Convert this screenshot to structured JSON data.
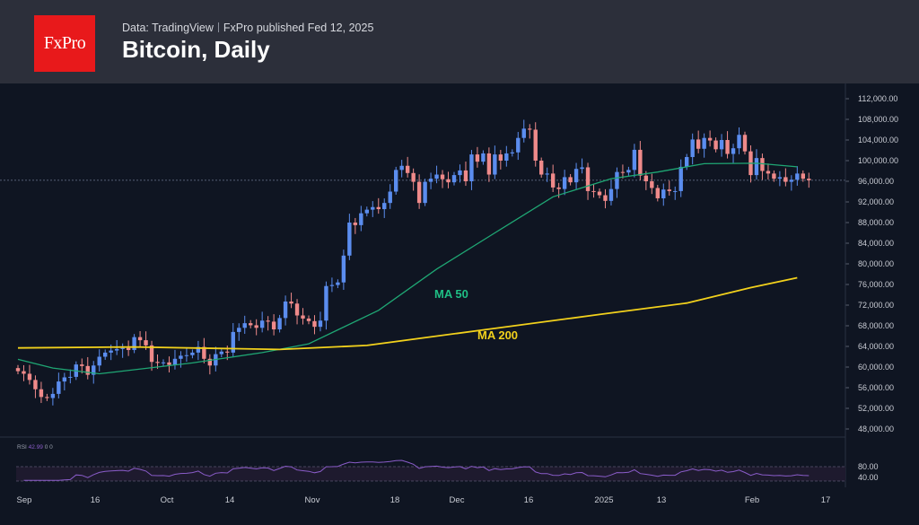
{
  "header": {
    "logo_text": "FxPro",
    "source": "Data: TradingView",
    "published": "FxPro published Fed 12, 2025",
    "title": "Bitcoin, Daily"
  },
  "colors": {
    "background": "#0f1522",
    "header_bg": "#2c2f3a",
    "logo_red": "#e8191b",
    "bull": "#5b8def",
    "bear": "#ef8a8a",
    "ma50": "#1fa774",
    "ma200": "#f2d11c",
    "rsi": "#8a5cc9"
  },
  "chart_data": {
    "type": "candlestick",
    "title": "Bitcoin, Daily",
    "ylim": [
      48000,
      112000
    ],
    "y_ticks": [
      "112,000.00",
      "108,000.00",
      "104,000.00",
      "100,000.00",
      "96,000.00",
      "92,000.00",
      "88,000.00",
      "84,000.00",
      "80,000.00",
      "76,000.00",
      "72,000.00",
      "68,000.00",
      "64,000.00",
      "60,000.00",
      "56,000.00",
      "52,000.00",
      "48,000.00"
    ],
    "x_ticks": [
      "Sep",
      "16",
      "Oct",
      "14",
      "Nov",
      "18",
      "Dec",
      "16",
      "2025",
      "13",
      "Feb",
      "17"
    ],
    "current_price": 96200,
    "closes_daily": [
      59200,
      58700,
      57500,
      55700,
      54200,
      54000,
      54800,
      57200,
      58000,
      58100,
      60500,
      60200,
      58500,
      60300,
      62000,
      62800,
      63200,
      63500,
      63700,
      63300,
      65800,
      65200,
      64200,
      61000,
      60800,
      60900,
      60400,
      61600,
      62200,
      62300,
      62800,
      63900,
      61600,
      60300,
      62500,
      63000,
      62800,
      66800,
      67600,
      68500,
      68100,
      67600,
      69000,
      68800,
      67300,
      69500,
      72700,
      72300,
      70000,
      69400,
      68900,
      67800,
      69000,
      75700,
      75900,
      76400,
      81600,
      88000,
      87500,
      89800,
      90500,
      91000,
      90600,
      91800,
      94000,
      98200,
      99000,
      97600,
      95900,
      91800,
      95900,
      96500,
      97300,
      96400,
      95800,
      97200,
      98100,
      96000,
      101200,
      99800,
      101400,
      97300,
      101200,
      100000,
      101400,
      101600,
      104400,
      106200,
      106000,
      100000,
      97300,
      97500,
      94800,
      94500,
      96800,
      95800,
      98400,
      98700,
      94100,
      94000,
      93300,
      92200,
      94500,
      97800,
      97700,
      98200,
      102100,
      97100,
      96000,
      94700,
      92700,
      94400,
      94100,
      94100,
      98800,
      100700,
      104100,
      102300,
      104400,
      103900,
      102200,
      104000,
      101300,
      102400,
      105000,
      101800,
      97200,
      100500,
      98000,
      97500,
      96500,
      96800,
      95900,
      96300,
      97500,
      96500,
      96200
    ],
    "series": [
      {
        "name": "MA 50",
        "anchors": [
          [
            0,
            61500
          ],
          [
            6,
            59800
          ],
          [
            14,
            58700
          ],
          [
            30,
            60800
          ],
          [
            42,
            62800
          ],
          [
            50,
            64500
          ],
          [
            62,
            71000
          ],
          [
            72,
            79000
          ],
          [
            82,
            86000
          ],
          [
            92,
            93000
          ],
          [
            102,
            96500
          ],
          [
            110,
            97800
          ],
          [
            118,
            99400
          ],
          [
            127,
            99500
          ],
          [
            134,
            98800
          ]
        ]
      },
      {
        "name": "MA 200",
        "anchors": [
          [
            0,
            63700
          ],
          [
            20,
            63900
          ],
          [
            45,
            63400
          ],
          [
            60,
            64200
          ],
          [
            80,
            67200
          ],
          [
            100,
            70200
          ],
          [
            115,
            72400
          ],
          [
            126,
            75400
          ],
          [
            134,
            77300
          ]
        ]
      }
    ],
    "annotations": [
      "MA 50",
      "MA 200"
    ],
    "rsi": {
      "label": "RSI",
      "value": "42.99",
      "extra": "0 0",
      "ticks": [
        "80.00",
        "40.00"
      ]
    }
  }
}
